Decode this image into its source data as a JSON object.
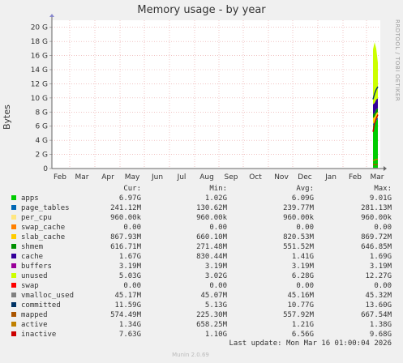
{
  "chart_data": {
    "type": "line",
    "title": "Memory usage - by year",
    "ylabel": "Bytes",
    "ylim": [
      0,
      21
    ],
    "yticks": [
      "0",
      "2 G",
      "4 G",
      "6 G",
      "8 G",
      "10 G",
      "12 G",
      "14 G",
      "16 G",
      "18 G",
      "20 G"
    ],
    "xticks": [
      "Feb",
      "Mar",
      "Apr",
      "May",
      "Jun",
      "Jul",
      "Aug",
      "Sep",
      "Oct",
      "Nov",
      "Dec",
      "Jan",
      "Feb",
      "Mar"
    ],
    "grid": true,
    "columns": [
      "Cur:",
      "Min:",
      "Avg:",
      "Max:"
    ],
    "series": [
      {
        "name": "apps",
        "color": "#00cc00",
        "cur": "6.97G",
        "min": "1.02G",
        "avg": "6.09G",
        "max": "9.01G"
      },
      {
        "name": "page_tables",
        "color": "#0066b3",
        "cur": "241.12M",
        "min": "130.62M",
        "avg": "239.77M",
        "max": "281.13M"
      },
      {
        "name": "per_cpu",
        "color": "#ffe680",
        "cur": "960.00k",
        "min": "960.00k",
        "avg": "960.00k",
        "max": "960.00k"
      },
      {
        "name": "swap_cache",
        "color": "#ff8000",
        "cur": "0.00",
        "min": "0.00",
        "avg": "0.00",
        "max": "0.00"
      },
      {
        "name": "slab_cache",
        "color": "#ffcc00",
        "cur": "867.93M",
        "min": "660.10M",
        "avg": "820.53M",
        "max": "869.72M"
      },
      {
        "name": "shmem",
        "color": "#008f00",
        "cur": "616.71M",
        "min": "271.48M",
        "avg": "551.52M",
        "max": "646.85M"
      },
      {
        "name": "cache",
        "color": "#330099",
        "cur": "1.67G",
        "min": "830.44M",
        "avg": "1.41G",
        "max": "1.69G"
      },
      {
        "name": "buffers",
        "color": "#990099",
        "cur": "3.19M",
        "min": "3.19M",
        "avg": "3.19M",
        "max": "3.19M"
      },
      {
        "name": "unused",
        "color": "#ccff00",
        "cur": "5.03G",
        "min": "3.02G",
        "avg": "6.28G",
        "max": "12.27G"
      },
      {
        "name": "swap",
        "color": "#ff0000",
        "cur": "0.00",
        "min": "0.00",
        "avg": "0.00",
        "max": "0.00"
      },
      {
        "name": "vmalloc_used",
        "color": "#808080",
        "cur": "45.17M",
        "min": "45.07M",
        "avg": "45.16M",
        "max": "45.32M"
      },
      {
        "name": "committed",
        "color": "#003366",
        "cur": "11.59G",
        "min": "5.13G",
        "avg": "10.77G",
        "max": "13.60G"
      },
      {
        "name": "mapped",
        "color": "#aa5500",
        "cur": "574.49M",
        "min": "225.30M",
        "avg": "557.92M",
        "max": "667.54M"
      },
      {
        "name": "active",
        "color": "#c08000",
        "cur": "1.34G",
        "min": "658.25M",
        "avg": "1.21G",
        "max": "1.38G"
      },
      {
        "name": "inactive",
        "color": "#cc0000",
        "cur": "7.63G",
        "min": "1.10G",
        "avg": "6.56G",
        "max": "9.68G"
      }
    ]
  },
  "watermark": "RRDTOOL / TOBI OETIKER",
  "last_update": "Last update: Mon Mar 16 01:00:04 2026",
  "footer": "Munin 2.0.69"
}
